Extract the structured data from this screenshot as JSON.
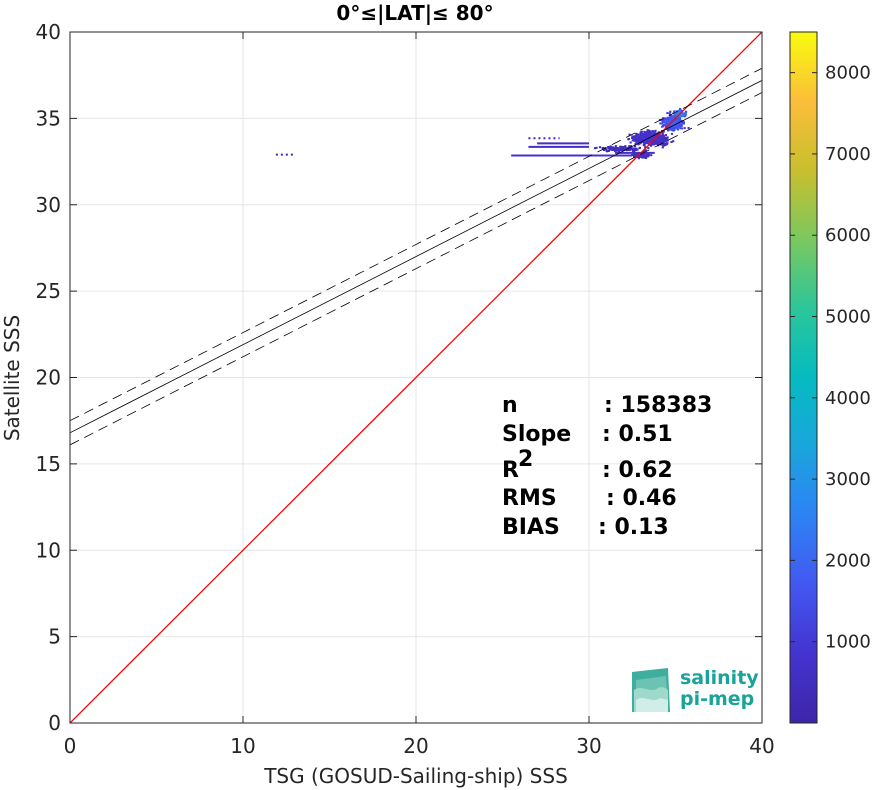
{
  "chart_data": {
    "type": "heatmap",
    "title": "0°≤|LAT|≤ 80°",
    "xlabel": "TSG (GOSUD-Sailing-ship) SSS",
    "ylabel": "Satellite SSS",
    "xlim": [
      0,
      40
    ],
    "ylim": [
      0,
      40
    ],
    "xticks": [
      "0",
      "10",
      "20",
      "30",
      "40"
    ],
    "yticks": [
      "0",
      "5",
      "10",
      "15",
      "20",
      "25",
      "30",
      "35",
      "40"
    ],
    "grid": true,
    "colorbar": {
      "range": [
        0,
        8500
      ],
      "ticks": [
        "1000",
        "2000",
        "3000",
        "4000",
        "5000",
        "6000",
        "7000",
        "8000"
      ],
      "colormap": "parula"
    },
    "identity_line": {
      "color": "#ff0000",
      "from": [
        0,
        0
      ],
      "to": [
        40,
        40
      ]
    },
    "regression": {
      "slope": 0.51,
      "intercept": 16.8,
      "confidence_offset": 0.7,
      "color": "#000000"
    },
    "density_clusters": [
      {
        "x": 33.5,
        "y": 33.9,
        "sx": 1.0,
        "sy": 0.35,
        "count": 650,
        "value": 700
      },
      {
        "x": 34.8,
        "y": 34.8,
        "sx": 0.6,
        "sy": 0.45,
        "count": 350,
        "value": 1500
      },
      {
        "x": 35.2,
        "y": 35.3,
        "sx": 0.3,
        "sy": 0.2,
        "count": 120,
        "value": 2200
      },
      {
        "x": 31.8,
        "y": 33.3,
        "sx": 1.3,
        "sy": 0.15,
        "count": 120,
        "value": 400
      },
      {
        "x": 33.0,
        "y": 32.9,
        "sx": 0.6,
        "sy": 0.12,
        "count": 80,
        "value": 500
      }
    ],
    "density_streaks": [
      {
        "x0": 25.5,
        "x1": 32.5,
        "y": 32.85,
        "value": 900
      },
      {
        "x0": 26.5,
        "x1": 30.0,
        "y": 33.35,
        "value": 600
      },
      {
        "x0": 27.0,
        "x1": 30.0,
        "y": 33.55,
        "value": 500
      },
      {
        "x0": 26.5,
        "x1": 28.3,
        "y": 33.85,
        "value": 400
      },
      {
        "x0": 31.5,
        "x1": 33.8,
        "y": 33.0,
        "value": 700
      },
      {
        "x0": 11.9,
        "x1": 13.0,
        "y": 32.9,
        "value": 200
      }
    ],
    "stats": [
      {
        "label": "n",
        "value": ": 158383"
      },
      {
        "label": "Slope",
        "value": ": 0.51"
      },
      {
        "label": "R",
        "sup": "2",
        "value": ": 0.62"
      },
      {
        "label": "RMS",
        "value": ": 0.46"
      },
      {
        "label": "BIAS",
        "value": ": 0.13"
      }
    ]
  },
  "logo": {
    "line1": "salinity",
    "line2": "pi-mep",
    "color": "#1aa39a"
  }
}
